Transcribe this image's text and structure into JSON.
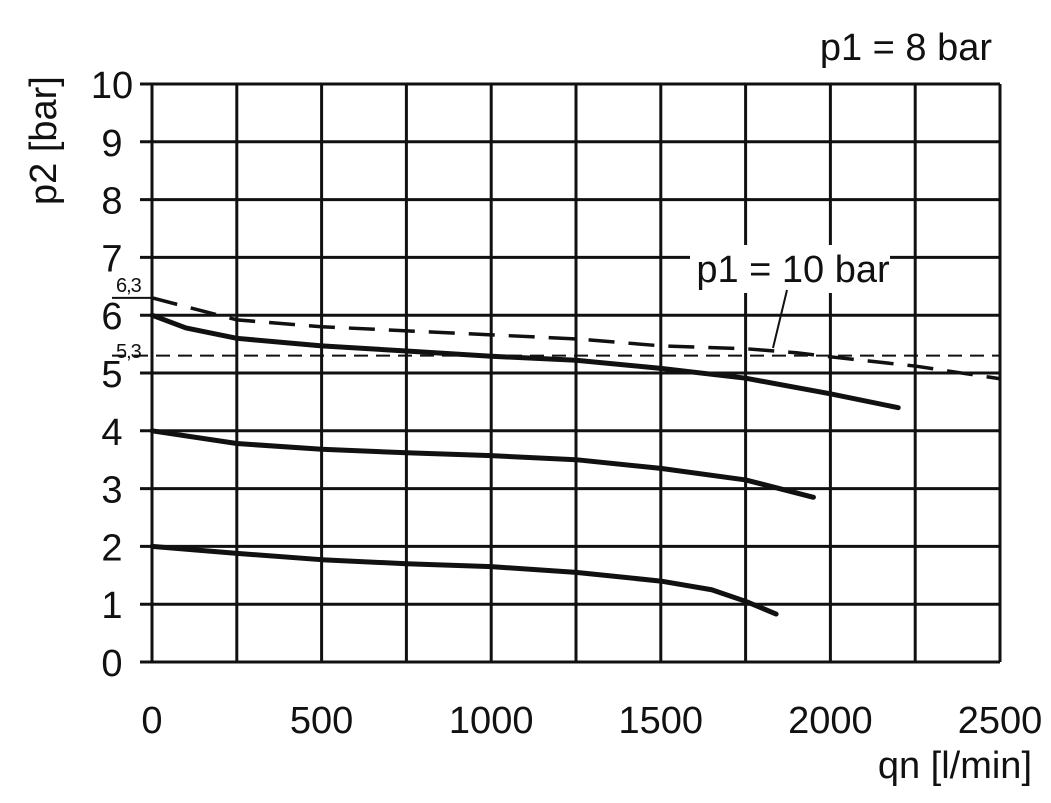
{
  "chart_data": {
    "type": "line",
    "title": "p1 = 8 bar",
    "xlabel": "qn [l/min]",
    "ylabel": "p2 [bar]",
    "xlim": [
      0,
      2500
    ],
    "ylim": [
      0,
      10
    ],
    "xticks": [
      0,
      500,
      1000,
      1500,
      2000,
      2500
    ],
    "yticks": [
      0,
      1,
      2,
      3,
      4,
      5,
      6,
      7,
      8,
      9,
      10
    ],
    "x_grid_step": 250,
    "y_grid_step": 1,
    "grid": true,
    "series": [
      {
        "style": "solid",
        "x": [
          0,
          100,
          250,
          500,
          750,
          1000,
          1250,
          1500,
          1750,
          2000,
          2200
        ],
        "y": [
          6.0,
          5.78,
          5.6,
          5.47,
          5.38,
          5.29,
          5.22,
          5.08,
          4.91,
          4.64,
          4.4
        ]
      },
      {
        "style": "solid",
        "x": [
          0,
          250,
          500,
          750,
          1000,
          1250,
          1500,
          1750,
          1950
        ],
        "y": [
          4.0,
          3.78,
          3.68,
          3.62,
          3.57,
          3.5,
          3.35,
          3.15,
          2.85
        ]
      },
      {
        "style": "solid",
        "x": [
          0,
          250,
          500,
          750,
          1000,
          1250,
          1500,
          1650,
          1750,
          1840
        ],
        "y": [
          2.0,
          1.88,
          1.77,
          1.7,
          1.65,
          1.55,
          1.4,
          1.25,
          1.05,
          0.83
        ]
      },
      {
        "name": "p1 = 10 bar",
        "style": "dashed",
        "x": [
          0,
          250,
          500,
          1000,
          1250,
          1500,
          1750,
          1900,
          2000,
          2250,
          2500
        ],
        "y": [
          6.3,
          5.92,
          5.8,
          5.66,
          5.59,
          5.47,
          5.42,
          5.35,
          5.28,
          5.12,
          4.9
        ]
      }
    ],
    "reference_lines": [
      {
        "y": 5.3,
        "label": "5,3",
        "style": "thin-dashed"
      },
      {
        "y": 6.3,
        "label": "6,3",
        "style": "marker"
      }
    ],
    "annotations": [
      {
        "text": "p1 = 10 bar",
        "points_to_x": 1750,
        "points_to_y": 5.42
      }
    ]
  }
}
